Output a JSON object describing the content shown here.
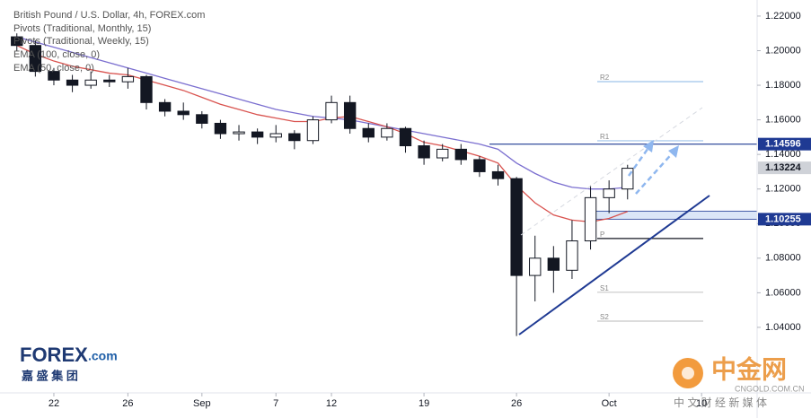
{
  "chart_data": {
    "type": "candlestick",
    "title": "British Pound / U.S. Dollar, 4h, FOREX.com",
    "legend_items": [
      "Pivots (Traditional, Monthly, 15)",
      "Pivots (Traditional, Weekly, 15)",
      "EMA (100, close, 0)",
      "EMA (50, close, 0)"
    ],
    "x": [
      -2,
      -1,
      0,
      1,
      2,
      3,
      4,
      5,
      6,
      7,
      8,
      9,
      10,
      11,
      12,
      13,
      14,
      15,
      16,
      17,
      18,
      19,
      20,
      21,
      22,
      23,
      24,
      25,
      26,
      27,
      28,
      29,
      30,
      31
    ],
    "open": [
      1.208,
      1.203,
      1.188,
      1.183,
      1.18,
      1.183,
      1.182,
      1.185,
      1.17,
      1.165,
      1.163,
      1.158,
      1.152,
      1.153,
      1.15,
      1.152,
      1.148,
      1.16,
      1.17,
      1.155,
      1.15,
      1.155,
      1.145,
      1.138,
      1.143,
      1.137,
      1.13,
      1.126,
      1.07,
      1.08,
      1.073,
      1.09,
      1.115,
      1.12
    ],
    "high": [
      1.21,
      1.206,
      1.19,
      1.186,
      1.188,
      1.186,
      1.19,
      1.186,
      1.172,
      1.17,
      1.165,
      1.16,
      1.157,
      1.155,
      1.157,
      1.154,
      1.162,
      1.174,
      1.174,
      1.158,
      1.158,
      1.156,
      1.148,
      1.146,
      1.146,
      1.139,
      1.134,
      1.127,
      1.093,
      1.087,
      1.102,
      1.122,
      1.125,
      1.134
    ],
    "low": [
      1.2,
      1.185,
      1.18,
      1.176,
      1.178,
      1.179,
      1.178,
      1.166,
      1.162,
      1.16,
      1.155,
      1.149,
      1.148,
      1.146,
      1.147,
      1.143,
      1.146,
      1.158,
      1.152,
      1.147,
      1.148,
      1.141,
      1.134,
      1.136,
      1.134,
      1.127,
      1.122,
      1.035,
      1.055,
      1.06,
      1.068,
      1.085,
      1.106,
      1.114
    ],
    "close": [
      1.203,
      1.188,
      1.183,
      1.18,
      1.183,
      1.182,
      1.185,
      1.17,
      1.165,
      1.163,
      1.158,
      1.152,
      1.153,
      1.15,
      1.152,
      1.148,
      1.16,
      1.17,
      1.155,
      1.15,
      1.155,
      1.145,
      1.138,
      1.143,
      1.137,
      1.13,
      1.126,
      1.07,
      1.08,
      1.073,
      1.09,
      1.115,
      1.12,
      1.132
    ],
    "up_color": "#ffffff",
    "down_color": "#131722",
    "wick_color": "#131722",
    "series": [
      {
        "name": "EMA (100, close, 0)",
        "color": "#7b6fd0",
        "values": [
          1.208,
          1.205,
          1.202,
          1.199,
          1.196,
          1.193,
          1.19,
          1.187,
          1.184,
          1.181,
          1.178,
          1.175,
          1.172,
          1.169,
          1.166,
          1.164,
          1.162,
          1.161,
          1.16,
          1.158,
          1.156,
          1.154,
          1.152,
          1.15,
          1.148,
          1.146,
          1.143,
          1.135,
          1.129,
          1.124,
          1.121,
          1.12,
          1.12,
          1.121
        ]
      },
      {
        "name": "EMA (50, close, 0)",
        "color": "#d9534f",
        "values": [
          1.203,
          1.198,
          1.194,
          1.191,
          1.189,
          1.187,
          1.186,
          1.183,
          1.18,
          1.177,
          1.173,
          1.169,
          1.166,
          1.163,
          1.161,
          1.159,
          1.159,
          1.161,
          1.162,
          1.159,
          1.156,
          1.152,
          1.147,
          1.145,
          1.142,
          1.139,
          1.135,
          1.122,
          1.112,
          1.105,
          1.102,
          1.101,
          1.103,
          1.107
        ]
      }
    ],
    "pivots": [
      {
        "label": "R2",
        "value": 1.1821,
        "color": "#9fc3ea"
      },
      {
        "label": "R1",
        "value": 1.1479,
        "color": "#9fc3ea"
      },
      {
        "label": "P",
        "value": 1.0914,
        "color": "#131722"
      },
      {
        "label": "S1",
        "value": 1.0603,
        "color": "#c8c8c8"
      },
      {
        "label": "S2",
        "value": 1.0436,
        "color": "#c8c8c8"
      }
    ],
    "price_labels": [
      {
        "value": 1.14596,
        "color": "#1f3a93",
        "text_color": "#ffffff"
      },
      {
        "value": 1.13224,
        "color": "#cfd2d8",
        "text_color": "#131722"
      },
      {
        "value": 1.10255,
        "color": "#1f3a93",
        "text_color": "#ffffff"
      }
    ],
    "xlim": [
      -2.91,
      38.0
    ],
    "ylim": [
      1.0021,
      1.2293
    ],
    "yticks": [
      {
        "value": 1.04,
        "label": "1.04000"
      },
      {
        "value": 1.06,
        "label": "1.06000"
      },
      {
        "value": 1.08,
        "label": "1.08000"
      },
      {
        "value": 1.1,
        "label": "1.10000"
      },
      {
        "value": 1.12,
        "label": "1.12000"
      },
      {
        "value": 1.14,
        "label": "1.14000"
      },
      {
        "value": 1.16,
        "label": "1.16000"
      },
      {
        "value": 1.18,
        "label": "1.18000"
      },
      {
        "value": 1.2,
        "label": "1.20000"
      },
      {
        "value": 1.22,
        "label": "1.22000"
      }
    ],
    "xticks": [
      {
        "value": 0,
        "label": "22"
      },
      {
        "value": 4,
        "label": "26"
      },
      {
        "value": 8,
        "label": "Sep"
      },
      {
        "value": 12,
        "label": "7"
      },
      {
        "value": 15,
        "label": "12"
      },
      {
        "value": 20,
        "label": "19"
      },
      {
        "value": 25,
        "label": "26"
      },
      {
        "value": 30,
        "label": "Oct"
      },
      {
        "value": 35,
        "label": "10"
      }
    ],
    "grid": false
  },
  "logo": {
    "brand": "FOREX",
    "suffix": ".com",
    "chinese": "嘉 盛 集 团"
  },
  "watermark": {
    "name": "中金网",
    "site": "CNGOLD.COM.CN",
    "tagline": "中 文 财 经 新 媒 体"
  }
}
